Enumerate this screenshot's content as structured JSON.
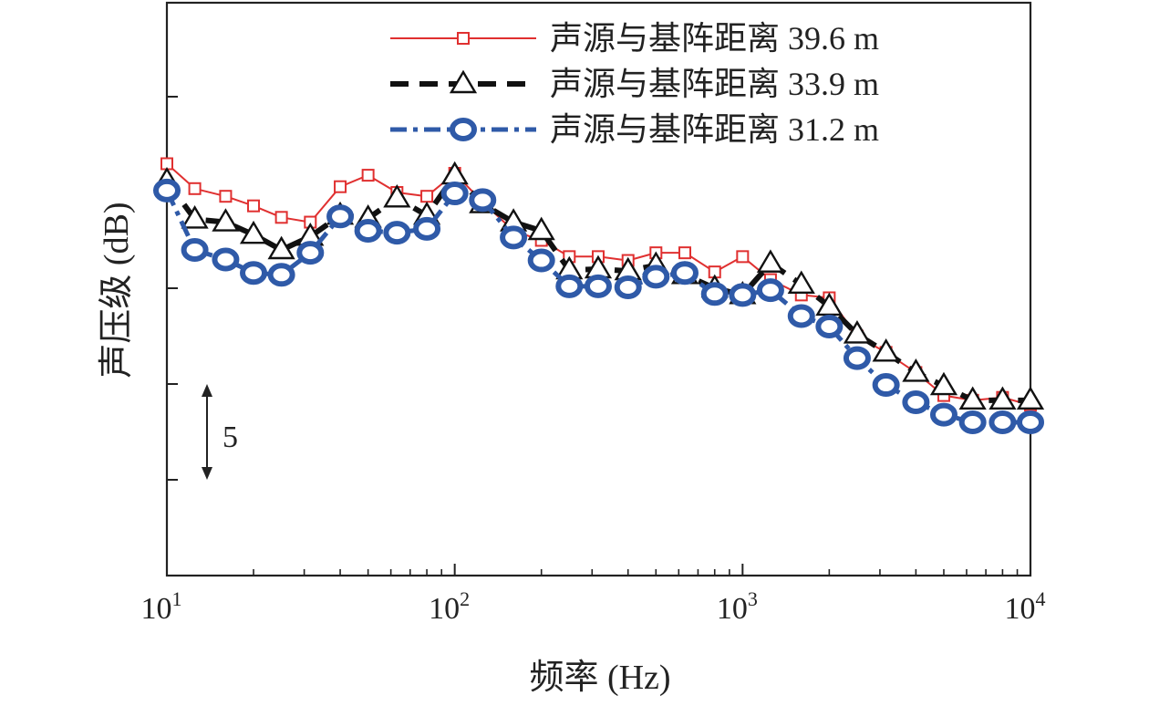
{
  "chart_data": {
    "type": "line",
    "xscale": "log",
    "xlim": [
      10,
      10000
    ],
    "ylim_steps": [
      0,
      6
    ],
    "xlabel": "频率 (Hz)",
    "ylabel": "声压级 (dB)",
    "xticks": [
      {
        "value": 10,
        "base": "10",
        "exp": "1"
      },
      {
        "value": 100,
        "base": "10",
        "exp": "2"
      },
      {
        "value": 1000,
        "base": "10",
        "exp": "3"
      },
      {
        "value": 10000,
        "base": "10",
        "exp": "4"
      }
    ],
    "scale_bar": {
      "label": "5",
      "unit_steps": 1
    },
    "grid": false,
    "legend_position": "top-right",
    "series": [
      {
        "name": "声源与基阵距离 39.6 m",
        "color": "#e03030",
        "marker": "square",
        "line": "solid",
        "points": [
          [
            10,
            4.3
          ],
          [
            12.5,
            4.04
          ],
          [
            16,
            3.96
          ],
          [
            20,
            3.86
          ],
          [
            25,
            3.74
          ],
          [
            31.5,
            3.69
          ],
          [
            40,
            4.06
          ],
          [
            50,
            4.18
          ],
          [
            63,
            4.0
          ],
          [
            80,
            3.96
          ],
          [
            100,
            4.2
          ],
          [
            125,
            3.9
          ],
          [
            160,
            3.6
          ],
          [
            200,
            3.5
          ],
          [
            250,
            3.33
          ],
          [
            315,
            3.33
          ],
          [
            400,
            3.29
          ],
          [
            500,
            3.37
          ],
          [
            630,
            3.37
          ],
          [
            800,
            3.17
          ],
          [
            1000,
            3.33
          ],
          [
            1250,
            3.09
          ],
          [
            1600,
            2.93
          ],
          [
            2000,
            2.9
          ],
          [
            2500,
            2.5
          ],
          [
            3150,
            2.33
          ],
          [
            4000,
            2.12
          ],
          [
            5000,
            1.88
          ],
          [
            6300,
            1.83
          ],
          [
            8000,
            1.86
          ],
          [
            10000,
            1.78
          ]
        ]
      },
      {
        "name": "声源与基阵距离 33.9 m",
        "color": "#111111",
        "marker": "triangle",
        "line": "dashed",
        "points": [
          [
            10,
            4.12
          ],
          [
            12.5,
            3.72
          ],
          [
            16,
            3.69
          ],
          [
            20,
            3.56
          ],
          [
            25,
            3.4
          ],
          [
            31.5,
            3.54
          ],
          [
            40,
            3.76
          ],
          [
            50,
            3.73
          ],
          [
            63,
            3.94
          ],
          [
            80,
            3.76
          ],
          [
            100,
            4.18
          ],
          [
            125,
            3.88
          ],
          [
            160,
            3.69
          ],
          [
            200,
            3.6
          ],
          [
            250,
            3.19
          ],
          [
            315,
            3.2
          ],
          [
            400,
            3.18
          ],
          [
            500,
            3.24
          ],
          [
            630,
            3.14
          ],
          [
            800,
            3.0
          ],
          [
            1000,
            2.93
          ],
          [
            1250,
            3.26
          ],
          [
            1600,
            3.04
          ],
          [
            2000,
            2.81
          ],
          [
            2500,
            2.52
          ],
          [
            3150,
            2.33
          ],
          [
            4000,
            2.12
          ],
          [
            5000,
            1.98
          ],
          [
            6300,
            1.83
          ],
          [
            8000,
            1.83
          ],
          [
            10000,
            1.83
          ]
        ]
      },
      {
        "name": "声源与基阵距离 31.2 m",
        "color": "#2f5aa8",
        "marker": "circle",
        "line": "dashdot",
        "points": [
          [
            10,
            4.02
          ],
          [
            12.5,
            3.4
          ],
          [
            16,
            3.3
          ],
          [
            20,
            3.16
          ],
          [
            25,
            3.14
          ],
          [
            31.5,
            3.37
          ],
          [
            40,
            3.75
          ],
          [
            50,
            3.6
          ],
          [
            63,
            3.58
          ],
          [
            80,
            3.62
          ],
          [
            100,
            3.99
          ],
          [
            125,
            3.92
          ],
          [
            160,
            3.53
          ],
          [
            200,
            3.29
          ],
          [
            250,
            3.02
          ],
          [
            315,
            3.02
          ],
          [
            400,
            3.01
          ],
          [
            500,
            3.12
          ],
          [
            630,
            3.16
          ],
          [
            800,
            2.94
          ],
          [
            1000,
            2.93
          ],
          [
            1250,
            2.98
          ],
          [
            1600,
            2.71
          ],
          [
            2000,
            2.6
          ],
          [
            2500,
            2.27
          ],
          [
            3150,
            1.99
          ],
          [
            4000,
            1.81
          ],
          [
            5000,
            1.68
          ],
          [
            6300,
            1.6
          ],
          [
            8000,
            1.6
          ],
          [
            10000,
            1.6
          ]
        ]
      }
    ]
  }
}
